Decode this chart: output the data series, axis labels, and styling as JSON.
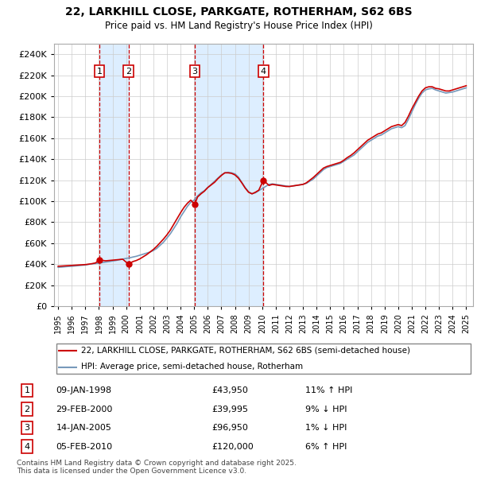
{
  "title": "22, LARKHILL CLOSE, PARKGATE, ROTHERHAM, S62 6BS",
  "subtitle": "Price paid vs. HM Land Registry's House Price Index (HPI)",
  "legend_line1": "22, LARKHILL CLOSE, PARKGATE, ROTHERHAM, S62 6BS (semi-detached house)",
  "legend_line2": "HPI: Average price, semi-detached house, Rotherham",
  "footer": "Contains HM Land Registry data © Crown copyright and database right 2025.\nThis data is licensed under the Open Government Licence v3.0.",
  "ylim": [
    0,
    250000
  ],
  "yticks": [
    0,
    20000,
    40000,
    60000,
    80000,
    100000,
    120000,
    140000,
    160000,
    180000,
    200000,
    220000,
    240000
  ],
  "xlim_start": 1994.7,
  "xlim_end": 2025.5,
  "transactions": [
    {
      "num": 1,
      "year": 1998.03,
      "price": 43950,
      "date": "09-JAN-1998",
      "pct": "11%",
      "dir": "↑",
      "label": "1"
    },
    {
      "num": 2,
      "year": 2000.17,
      "price": 39995,
      "date": "29-FEB-2000",
      "pct": "9%",
      "dir": "↓",
      "label": "2"
    },
    {
      "num": 3,
      "year": 2005.04,
      "price": 96950,
      "date": "14-JAN-2005",
      "pct": "1%",
      "dir": "↓",
      "label": "3"
    },
    {
      "num": 4,
      "year": 2010.09,
      "price": 120000,
      "date": "05-FEB-2010",
      "pct": "6%",
      "dir": "↑",
      "label": "4"
    }
  ],
  "hpi_color": "#7799bb",
  "price_color": "#cc0000",
  "vline_color": "#cc0000",
  "shade_color": "#ddeeff",
  "box_color": "#cc0000",
  "hpi_data_x": [
    1995.0,
    1995.25,
    1995.5,
    1995.75,
    1996.0,
    1996.25,
    1996.5,
    1996.75,
    1997.0,
    1997.25,
    1997.5,
    1997.75,
    1998.0,
    1998.25,
    1998.5,
    1998.75,
    1999.0,
    1999.25,
    1999.5,
    1999.75,
    2000.0,
    2000.25,
    2000.5,
    2000.75,
    2001.0,
    2001.25,
    2001.5,
    2001.75,
    2002.0,
    2002.25,
    2002.5,
    2002.75,
    2003.0,
    2003.25,
    2003.5,
    2003.75,
    2004.0,
    2004.25,
    2004.5,
    2004.75,
    2005.0,
    2005.25,
    2005.5,
    2005.75,
    2006.0,
    2006.25,
    2006.5,
    2006.75,
    2007.0,
    2007.25,
    2007.5,
    2007.75,
    2008.0,
    2008.25,
    2008.5,
    2008.75,
    2009.0,
    2009.25,
    2009.5,
    2009.75,
    2010.0,
    2010.25,
    2010.5,
    2010.75,
    2011.0,
    2011.25,
    2011.5,
    2011.75,
    2012.0,
    2012.25,
    2012.5,
    2012.75,
    2013.0,
    2013.25,
    2013.5,
    2013.75,
    2014.0,
    2014.25,
    2014.5,
    2014.75,
    2015.0,
    2015.25,
    2015.5,
    2015.75,
    2016.0,
    2016.25,
    2016.5,
    2016.75,
    2017.0,
    2017.25,
    2017.5,
    2017.75,
    2018.0,
    2018.25,
    2018.5,
    2018.75,
    2019.0,
    2019.25,
    2019.5,
    2019.75,
    2020.0,
    2020.25,
    2020.5,
    2020.75,
    2021.0,
    2021.25,
    2021.5,
    2021.75,
    2022.0,
    2022.25,
    2022.5,
    2022.75,
    2023.0,
    2023.25,
    2023.5,
    2023.75,
    2024.0,
    2024.25,
    2024.5,
    2024.75,
    2025.0
  ],
  "hpi_data_y": [
    37000,
    37200,
    37500,
    37800,
    38000,
    38300,
    38600,
    38900,
    39200,
    39800,
    40200,
    40600,
    41000,
    41500,
    42000,
    42500,
    43000,
    43500,
    44200,
    44800,
    45500,
    46000,
    46800,
    47500,
    48500,
    49500,
    50500,
    51500,
    53000,
    55000,
    58000,
    61000,
    65000,
    69000,
    74000,
    79000,
    85000,
    90000,
    95000,
    99000,
    101000,
    105000,
    108000,
    110000,
    113000,
    116000,
    119000,
    122000,
    125000,
    127000,
    127500,
    127000,
    126000,
    123000,
    118000,
    113000,
    109000,
    107000,
    108000,
    110000,
    112000,
    114000,
    116000,
    116500,
    116000,
    115500,
    115000,
    114500,
    114000,
    114500,
    115000,
    115500,
    116000,
    117000,
    119000,
    121000,
    124000,
    127000,
    130000,
    132000,
    133000,
    134000,
    135000,
    136000,
    138000,
    140000,
    142000,
    144000,
    147000,
    150000,
    153000,
    156000,
    158000,
    160000,
    162000,
    163000,
    165000,
    167000,
    169000,
    170000,
    171000,
    170000,
    172000,
    178000,
    185000,
    192000,
    198000,
    203000,
    206000,
    207000,
    207500,
    206000,
    205000,
    204000,
    203000,
    203500,
    204000,
    205000,
    206000,
    207000,
    208000
  ],
  "price_data_x": [
    1995.0,
    1995.25,
    1995.5,
    1995.75,
    1996.0,
    1996.25,
    1996.5,
    1996.75,
    1997.0,
    1997.25,
    1997.5,
    1997.75,
    1998.03,
    1998.5,
    1998.75,
    1999.0,
    1999.25,
    1999.5,
    1999.75,
    2000.17,
    2000.5,
    2000.75,
    2001.0,
    2001.25,
    2001.5,
    2001.75,
    2002.0,
    2002.25,
    2002.5,
    2002.75,
    2003.0,
    2003.25,
    2003.5,
    2003.75,
    2004.0,
    2004.25,
    2004.5,
    2004.75,
    2005.04,
    2005.25,
    2005.5,
    2005.75,
    2006.0,
    2006.25,
    2006.5,
    2006.75,
    2007.0,
    2007.25,
    2007.5,
    2007.75,
    2008.0,
    2008.25,
    2008.5,
    2008.75,
    2009.0,
    2009.25,
    2009.5,
    2009.75,
    2010.09,
    2010.5,
    2010.75,
    2011.0,
    2011.25,
    2011.5,
    2011.75,
    2012.0,
    2012.25,
    2012.5,
    2012.75,
    2013.0,
    2013.25,
    2013.5,
    2013.75,
    2014.0,
    2014.25,
    2014.5,
    2014.75,
    2015.0,
    2015.25,
    2015.5,
    2015.75,
    2016.0,
    2016.25,
    2016.5,
    2016.75,
    2017.0,
    2017.25,
    2017.5,
    2017.75,
    2018.0,
    2018.25,
    2018.5,
    2018.75,
    2019.0,
    2019.25,
    2019.5,
    2019.75,
    2020.0,
    2020.25,
    2020.5,
    2020.75,
    2021.0,
    2021.25,
    2021.5,
    2021.75,
    2022.0,
    2022.25,
    2022.5,
    2022.75,
    2023.0,
    2023.25,
    2023.5,
    2023.75,
    2024.0,
    2024.25,
    2024.5,
    2024.75,
    2025.0
  ],
  "price_data_y": [
    38000,
    38200,
    38400,
    38600,
    38800,
    39000,
    39200,
    39400,
    39600,
    40000,
    40500,
    41200,
    43950,
    43200,
    43500,
    43800,
    44100,
    44400,
    44700,
    39995,
    42500,
    43500,
    45000,
    47000,
    49000,
    51500,
    54000,
    57000,
    60500,
    64000,
    68000,
    72500,
    78000,
    83500,
    89000,
    94000,
    98000,
    101000,
    96950,
    104000,
    107000,
    109500,
    113000,
    115500,
    118000,
    121500,
    124500,
    127000,
    127000,
    126500,
    125000,
    122000,
    117500,
    112500,
    108500,
    107000,
    108500,
    110500,
    120000,
    115000,
    116000,
    115500,
    115000,
    114500,
    114000,
    114000,
    114500,
    115000,
    115500,
    116000,
    117500,
    120000,
    122500,
    125500,
    128500,
    131500,
    133000,
    134000,
    135000,
    136000,
    137000,
    139000,
    141500,
    143500,
    146000,
    149000,
    152000,
    155000,
    158000,
    160000,
    162000,
    164000,
    165000,
    167000,
    169000,
    171000,
    172000,
    173000,
    172000,
    175000,
    181000,
    188000,
    194000,
    200000,
    205000,
    208000,
    209000,
    209000,
    207500,
    207000,
    206000,
    205000,
    205000,
    206000,
    207000,
    208000,
    209000,
    210000
  ]
}
